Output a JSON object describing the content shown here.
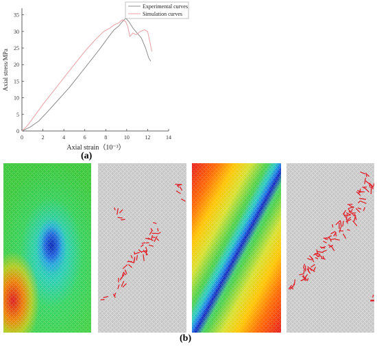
{
  "chart_data": {
    "type": "line",
    "title": "",
    "xlabel": "Axial strain（10⁻³）",
    "ylabel": "Axial stress/MPa",
    "xlim": [
      0,
      14
    ],
    "ylim": [
      0,
      37
    ],
    "xticks": [
      0,
      2,
      4,
      6,
      8,
      10,
      12,
      14
    ],
    "yticks": [
      0,
      5,
      10,
      15,
      20,
      25,
      30,
      35
    ],
    "xtick_labels": [
      "0",
      "2",
      "4",
      "6",
      "8",
      "10",
      "12",
      "14"
    ],
    "ytick_labels": [
      "0",
      "5",
      "10",
      "15",
      "20",
      "25",
      "30",
      "35"
    ],
    "grid": false,
    "legend": "top-right",
    "series": [
      {
        "name": "Experimental curves",
        "color": "#8c8c8c",
        "x": [
          0,
          0.8,
          1.6,
          2.5,
          3.5,
          4.5,
          5.5,
          6.5,
          7.5,
          8.3,
          8.8,
          9.2,
          9.6,
          9.9,
          10.2,
          10.6,
          11.0,
          11.4,
          11.8,
          12.1,
          12.3
        ],
        "y": [
          0,
          1.2,
          3.0,
          6.0,
          9.5,
          13.0,
          17.0,
          21.0,
          25.0,
          28.5,
          30.5,
          31.5,
          33.0,
          34.0,
          33.0,
          31.0,
          29.5,
          28.0,
          25.0,
          22.0,
          21.0
        ]
      },
      {
        "name": "Simulation curves",
        "color": "#e8a0a0",
        "x": [
          0,
          0.5,
          1.2,
          2.0,
          3.0,
          4.0,
          5.0,
          6.0,
          7.0,
          7.8,
          8.4,
          8.8,
          9.2,
          9.6,
          9.9,
          10.1,
          10.3,
          10.6,
          10.9,
          11.3,
          11.7,
          12.0,
          12.2,
          12.4
        ],
        "y": [
          0,
          1.5,
          4.5,
          8.0,
          12.0,
          16.0,
          20.0,
          24.0,
          27.5,
          30.0,
          31.0,
          32.0,
          32.5,
          33.5,
          33.0,
          31.5,
          28.5,
          29.5,
          29.0,
          30.0,
          30.5,
          30.0,
          27.0,
          24.0
        ]
      }
    ]
  },
  "figure": {
    "caption_a": "(a)",
    "caption_b": "(b)"
  }
}
